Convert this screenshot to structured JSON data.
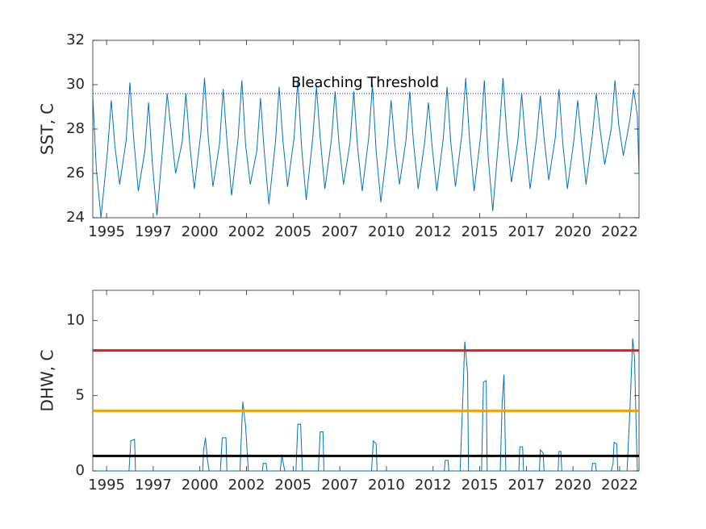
{
  "chart_data": [
    {
      "type": "line",
      "ylabel": "SST, C",
      "xlim": [
        1994.26,
        2023.54
      ],
      "xticks": [
        1995,
        {
          "value": 1997.5,
          "label": "1997"
        },
        2000,
        {
          "value": 2002.5,
          "label": "2002"
        },
        2005,
        {
          "value": 2007.5,
          "label": "2007"
        },
        2010,
        {
          "value": 2012.5,
          "label": "2012"
        },
        2015,
        {
          "value": 2017.5,
          "label": "2017"
        },
        2020,
        {
          "value": 2022.5,
          "label": "2022"
        }
      ],
      "ylim": [
        24,
        32
      ],
      "yticks": [
        24,
        26,
        28,
        30,
        32
      ],
      "hlines": [
        {
          "value": 29.6,
          "color": "#0000ff",
          "style": "dotted"
        }
      ],
      "annotations": [
        "Bleaching Threshold"
      ],
      "series": [
        {
          "color": "#0072bd",
          "x": [
            1994.26,
            1994.45,
            1994.7,
            1995.05,
            1995.25,
            1995.45,
            1995.7,
            1996.05,
            1996.25,
            1996.45,
            1996.7,
            1997.05,
            1997.25,
            1997.45,
            1997.7,
            1998.05,
            1998.25,
            1998.45,
            1998.7,
            1999.05,
            1999.25,
            1999.45,
            1999.7,
            2000.05,
            2000.25,
            2000.45,
            2000.7,
            2001.05,
            2001.25,
            2001.45,
            2001.7,
            2002.05,
            2002.25,
            2002.45,
            2002.7,
            2003.05,
            2003.25,
            2003.45,
            2003.7,
            2004.05,
            2004.25,
            2004.45,
            2004.7,
            2005.05,
            2005.25,
            2005.45,
            2005.7,
            2006.05,
            2006.25,
            2006.45,
            2006.7,
            2007.05,
            2007.25,
            2007.45,
            2007.7,
            2008.05,
            2008.25,
            2008.45,
            2008.7,
            2009.05,
            2009.25,
            2009.45,
            2009.7,
            2010.05,
            2010.25,
            2010.45,
            2010.7,
            2011.05,
            2011.25,
            2011.45,
            2011.7,
            2012.05,
            2012.25,
            2012.45,
            2012.7,
            2013.05,
            2013.25,
            2013.45,
            2013.7,
            2014.05,
            2014.25,
            2014.45,
            2014.7,
            2015.05,
            2015.25,
            2015.45,
            2015.7,
            2016.05,
            2016.25,
            2016.45,
            2016.7,
            2017.05,
            2017.25,
            2017.45,
            2017.7,
            2018.05,
            2018.25,
            2018.45,
            2018.7,
            2019.05,
            2019.25,
            2019.45,
            2019.7,
            2020.05,
            2020.25,
            2020.45,
            2020.7,
            2021.05,
            2021.25,
            2021.45,
            2021.7,
            2022.05,
            2022.25,
            2022.45,
            2022.7,
            2023.05,
            2023.25,
            2023.45,
            2023.54
          ],
          "values": [
            29.5,
            26.2,
            24.0,
            27.0,
            29.3,
            27.2,
            25.5,
            27.5,
            30.1,
            27.6,
            25.2,
            27.0,
            29.2,
            26.5,
            24.1,
            27.6,
            29.6,
            28.0,
            26.0,
            27.4,
            29.6,
            27.4,
            25.3,
            27.8,
            30.3,
            27.6,
            25.4,
            27.3,
            29.8,
            27.5,
            25.0,
            27.6,
            30.2,
            27.3,
            25.5,
            27.0,
            29.4,
            27.0,
            24.6,
            27.4,
            29.9,
            27.5,
            25.4,
            27.6,
            30.2,
            27.2,
            24.8,
            27.6,
            29.9,
            27.6,
            25.3,
            27.5,
            29.7,
            27.4,
            25.5,
            27.4,
            29.7,
            27.2,
            25.2,
            27.6,
            30.0,
            27.0,
            24.7,
            27.2,
            29.3,
            27.3,
            25.5,
            27.5,
            29.7,
            27.4,
            25.3,
            27.4,
            29.2,
            27.2,
            25.2,
            27.6,
            29.9,
            27.4,
            25.4,
            27.8,
            30.3,
            27.6,
            25.2,
            27.7,
            30.2,
            26.8,
            24.3,
            27.9,
            30.3,
            27.8,
            25.6,
            27.5,
            29.6,
            27.5,
            25.3,
            27.6,
            29.5,
            27.6,
            25.7,
            27.6,
            29.8,
            27.4,
            25.3,
            27.5,
            29.3,
            27.5,
            25.5,
            27.8,
            29.6,
            28.0,
            26.4,
            28.0,
            30.2,
            28.2,
            26.8,
            28.4,
            29.8,
            28.6,
            25.9
          ]
        }
      ]
    },
    {
      "type": "line",
      "ylabel": "DHW, C",
      "xlim": [
        1994.26,
        2023.54
      ],
      "xticks": [
        1995,
        {
          "value": 1997.5,
          "label": "1997"
        },
        2000,
        {
          "value": 2002.5,
          "label": "2002"
        },
        2005,
        {
          "value": 2007.5,
          "label": "2007"
        },
        2010,
        {
          "value": 2012.5,
          "label": "2012"
        },
        2015,
        {
          "value": 2017.5,
          "label": "2017"
        },
        2020,
        {
          "value": 2022.5,
          "label": "2022"
        }
      ],
      "ylim": [
        0,
        12
      ],
      "yticks": [
        0,
        5,
        10
      ],
      "hlines": [
        {
          "value": 8,
          "color": "#e41a1c",
          "style": "solid"
        },
        {
          "value": 4,
          "color": "#f5a000",
          "style": "solid"
        },
        {
          "value": 1,
          "color": "#000000",
          "style": "solid"
        }
      ],
      "series": [
        {
          "color": "#0072bd",
          "x": [
            1994.26,
            1996.2,
            1996.3,
            1996.5,
            1996.55,
            2000.15,
            2000.2,
            2000.3,
            2000.4,
            2000.5,
            2001.1,
            2001.2,
            2001.4,
            2001.45,
            2002.15,
            2002.3,
            2002.45,
            2002.6,
            2003.35,
            2003.4,
            2003.55,
            2003.6,
            2004.3,
            2004.4,
            2004.55,
            2005.15,
            2005.25,
            2005.4,
            2005.5,
            2006.35,
            2006.45,
            2006.6,
            2006.65,
            2009.2,
            2009.3,
            2009.45,
            2009.5,
            2013.1,
            2013.15,
            2013.3,
            2013.35,
            2013.95,
            2014.1,
            2014.2,
            2014.35,
            2014.4,
            2015.1,
            2015.2,
            2015.35,
            2015.4,
            2016.1,
            2016.2,
            2016.3,
            2016.4,
            2017.1,
            2017.15,
            2017.3,
            2017.35,
            2018.2,
            2018.25,
            2018.4,
            2018.45,
            2019.2,
            2019.25,
            2019.35,
            2019.4,
            2021.0,
            2021.05,
            2021.2,
            2021.25,
            2022.05,
            2022.15,
            2022.2,
            2022.35,
            2022.4,
            2022.9,
            2023.05,
            2023.2,
            2023.3,
            2023.4,
            2023.45,
            2023.54
          ],
          "values": [
            0,
            0,
            2.0,
            2.1,
            0,
            0,
            1.4,
            2.2,
            0.8,
            0,
            0,
            2.2,
            2.2,
            0,
            0,
            4.6,
            3.0,
            0,
            0,
            0.5,
            0.5,
            0,
            0,
            1.0,
            0,
            0,
            3.1,
            3.1,
            0,
            0,
            2.6,
            2.6,
            0,
            0,
            2.0,
            1.8,
            0,
            0,
            0.7,
            0.7,
            0,
            0,
            5.0,
            8.6,
            6.5,
            0,
            0,
            5.9,
            6.0,
            0,
            0,
            4.4,
            6.4,
            0,
            0,
            1.6,
            1.6,
            0,
            0,
            1.4,
            1.2,
            0,
            0,
            1.3,
            1.3,
            0,
            0,
            0.5,
            0.5,
            0,
            0,
            0.5,
            1.9,
            1.8,
            0,
            0,
            4.0,
            8.8,
            7.5,
            2.3,
            0,
            0
          ]
        }
      ]
    }
  ]
}
